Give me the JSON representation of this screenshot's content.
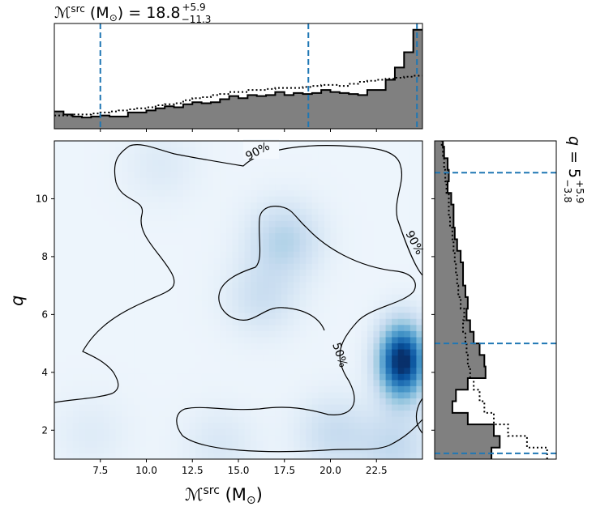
{
  "chart_data": [
    {
      "type": "heatmap",
      "panel": "joint",
      "xlabel_main": "ℳ",
      "xlabel_sup": "src",
      "xlabel_unit": " (M",
      "xlabel_unit_sub": "⊙",
      "xlabel_close": ")",
      "ylabel": "q",
      "xlim": [
        5,
        25
      ],
      "ylim": [
        1,
        12
      ],
      "xticks": [
        "7.5",
        "10.0",
        "12.5",
        "15.0",
        "17.5",
        "20.0",
        "22.5"
      ],
      "xtick_values": [
        7.5,
        10.0,
        12.5,
        15.0,
        17.5,
        20.0,
        22.5
      ],
      "yticks": [
        "2",
        "4",
        "6",
        "8",
        "10"
      ],
      "ytick_values": [
        2,
        4,
        6,
        8,
        10
      ],
      "colormap": "Blues",
      "density_peaks": [
        {
          "x": 23.9,
          "y": 4.4,
          "w": 1.0
        },
        {
          "x": 17.5,
          "y": 8.6,
          "w": 0.25
        },
        {
          "x": 16.3,
          "y": 6.6,
          "w": 0.16
        },
        {
          "x": 20.2,
          "y": 1.9,
          "w": 0.18
        },
        {
          "x": 23.5,
          "y": 1.4,
          "w": 0.2
        },
        {
          "x": 10.8,
          "y": 11.2,
          "w": 0.08
        },
        {
          "x": 7.0,
          "y": 1.9,
          "w": 0.07
        },
        {
          "x": 14.0,
          "y": 1.5,
          "w": 0.1
        }
      ],
      "contour_labels": [
        "90%",
        "90%",
        "50%"
      ]
    },
    {
      "type": "area",
      "panel": "top-marginal",
      "title_main": "ℳ",
      "title_sup": "src",
      "title_unit": " (M",
      "title_unit_sub": "⊙",
      "title_rest": ") = 18.8",
      "title_plus": "+5.9",
      "title_minus": "−11.3",
      "quantiles": [
        7.5,
        18.8,
        24.7
      ],
      "x": [
        5.0,
        5.5,
        6.0,
        6.5,
        7.0,
        7.5,
        8.0,
        8.5,
        9.0,
        9.5,
        10.0,
        10.5,
        11.0,
        11.5,
        12.0,
        12.5,
        13.0,
        13.5,
        14.0,
        14.5,
        15.0,
        15.5,
        16.0,
        16.5,
        17.0,
        17.5,
        18.0,
        18.5,
        19.0,
        19.5,
        20.0,
        20.5,
        21.0,
        21.5,
        22.0,
        22.5,
        23.0,
        23.5,
        24.0,
        24.5
      ],
      "series": [
        {
          "values": [
            0.17,
            0.14,
            0.12,
            0.11,
            0.12,
            0.13,
            0.12,
            0.12,
            0.16,
            0.16,
            0.18,
            0.2,
            0.22,
            0.21,
            0.24,
            0.26,
            0.25,
            0.26,
            0.29,
            0.32,
            0.3,
            0.33,
            0.32,
            0.33,
            0.36,
            0.33,
            0.35,
            0.34,
            0.35,
            0.38,
            0.36,
            0.35,
            0.34,
            0.33,
            0.38,
            0.38,
            0.48,
            0.6,
            0.75,
            0.97
          ]
        },
        {
          "values": [
            0.13,
            0.13,
            0.14,
            0.14,
            0.15,
            0.16,
            0.17,
            0.18,
            0.19,
            0.2,
            0.21,
            0.23,
            0.24,
            0.25,
            0.28,
            0.3,
            0.31,
            0.33,
            0.34,
            0.36,
            0.36,
            0.38,
            0.38,
            0.39,
            0.4,
            0.4,
            0.4,
            0.41,
            0.42,
            0.43,
            0.43,
            0.42,
            0.44,
            0.46,
            0.47,
            0.48,
            0.49,
            0.5,
            0.51,
            0.52
          ]
        }
      ]
    },
    {
      "type": "area",
      "panel": "right-marginal",
      "title_main": "q",
      "title_rest": " = 5",
      "title_plus": "+5.9",
      "title_minus": "−3.8",
      "quantiles": [
        10.9,
        5.0,
        1.2
      ],
      "y": [
        1.0,
        1.4,
        1.8,
        2.2,
        2.6,
        3.0,
        3.4,
        3.8,
        4.2,
        4.6,
        5.0,
        5.4,
        5.8,
        6.2,
        6.6,
        7.0,
        7.4,
        7.8,
        8.2,
        8.6,
        9.0,
        9.4,
        9.8,
        10.2,
        10.6,
        11.0,
        11.4,
        11.8
      ],
      "series": [
        {
          "values": [
            0.48,
            0.55,
            0.5,
            0.28,
            0.15,
            0.18,
            0.28,
            0.43,
            0.42,
            0.38,
            0.33,
            0.3,
            0.27,
            0.28,
            0.26,
            0.24,
            0.24,
            0.22,
            0.19,
            0.17,
            0.16,
            0.16,
            0.14,
            0.11,
            0.12,
            0.11,
            0.08,
            0.07
          ]
        },
        {
          "values": [
            0.95,
            0.78,
            0.62,
            0.5,
            0.42,
            0.38,
            0.33,
            0.3,
            0.28,
            0.27,
            0.26,
            0.24,
            0.25,
            0.22,
            0.2,
            0.19,
            0.18,
            0.17,
            0.16,
            0.15,
            0.13,
            0.12,
            0.12,
            0.1,
            0.09,
            0.08,
            0.07,
            0.06
          ]
        }
      ]
    }
  ]
}
